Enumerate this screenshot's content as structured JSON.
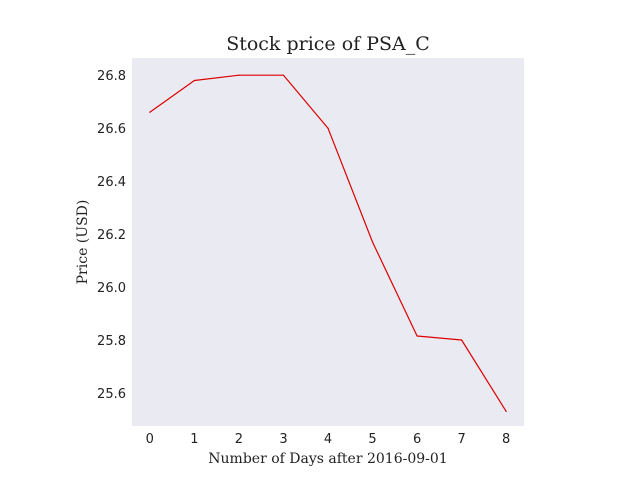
{
  "chart_data": {
    "type": "line",
    "title": "Stock price of PSA_C",
    "xlabel": "Number of Days after 2016-09-01",
    "ylabel": "Price (USD)",
    "x": [
      0,
      1,
      2,
      3,
      4,
      5,
      6,
      7,
      8
    ],
    "series": [
      {
        "values": [
          26.66,
          26.78,
          26.8,
          26.8,
          26.6,
          26.17,
          25.815,
          25.8,
          25.53
        ]
      }
    ],
    "xlim": [
      -0.4,
      8.4
    ],
    "ylim": [
      25.475,
      26.865
    ],
    "xticks": [
      0,
      1,
      2,
      3,
      4,
      5,
      6,
      7,
      8
    ],
    "xtick_labels": [
      "0",
      "1",
      "2",
      "3",
      "4",
      "5",
      "6",
      "7",
      "8"
    ],
    "yticks": [
      25.6,
      25.8,
      26.0,
      26.2,
      26.4,
      26.6,
      26.8
    ],
    "ytick_labels": [
      "25.6",
      "25.8",
      "26.0",
      "26.2",
      "26.4",
      "26.6",
      "26.8"
    ],
    "grid": false,
    "colors": {
      "line": "#dd0000",
      "plot_background": "#eaeaf2"
    }
  }
}
